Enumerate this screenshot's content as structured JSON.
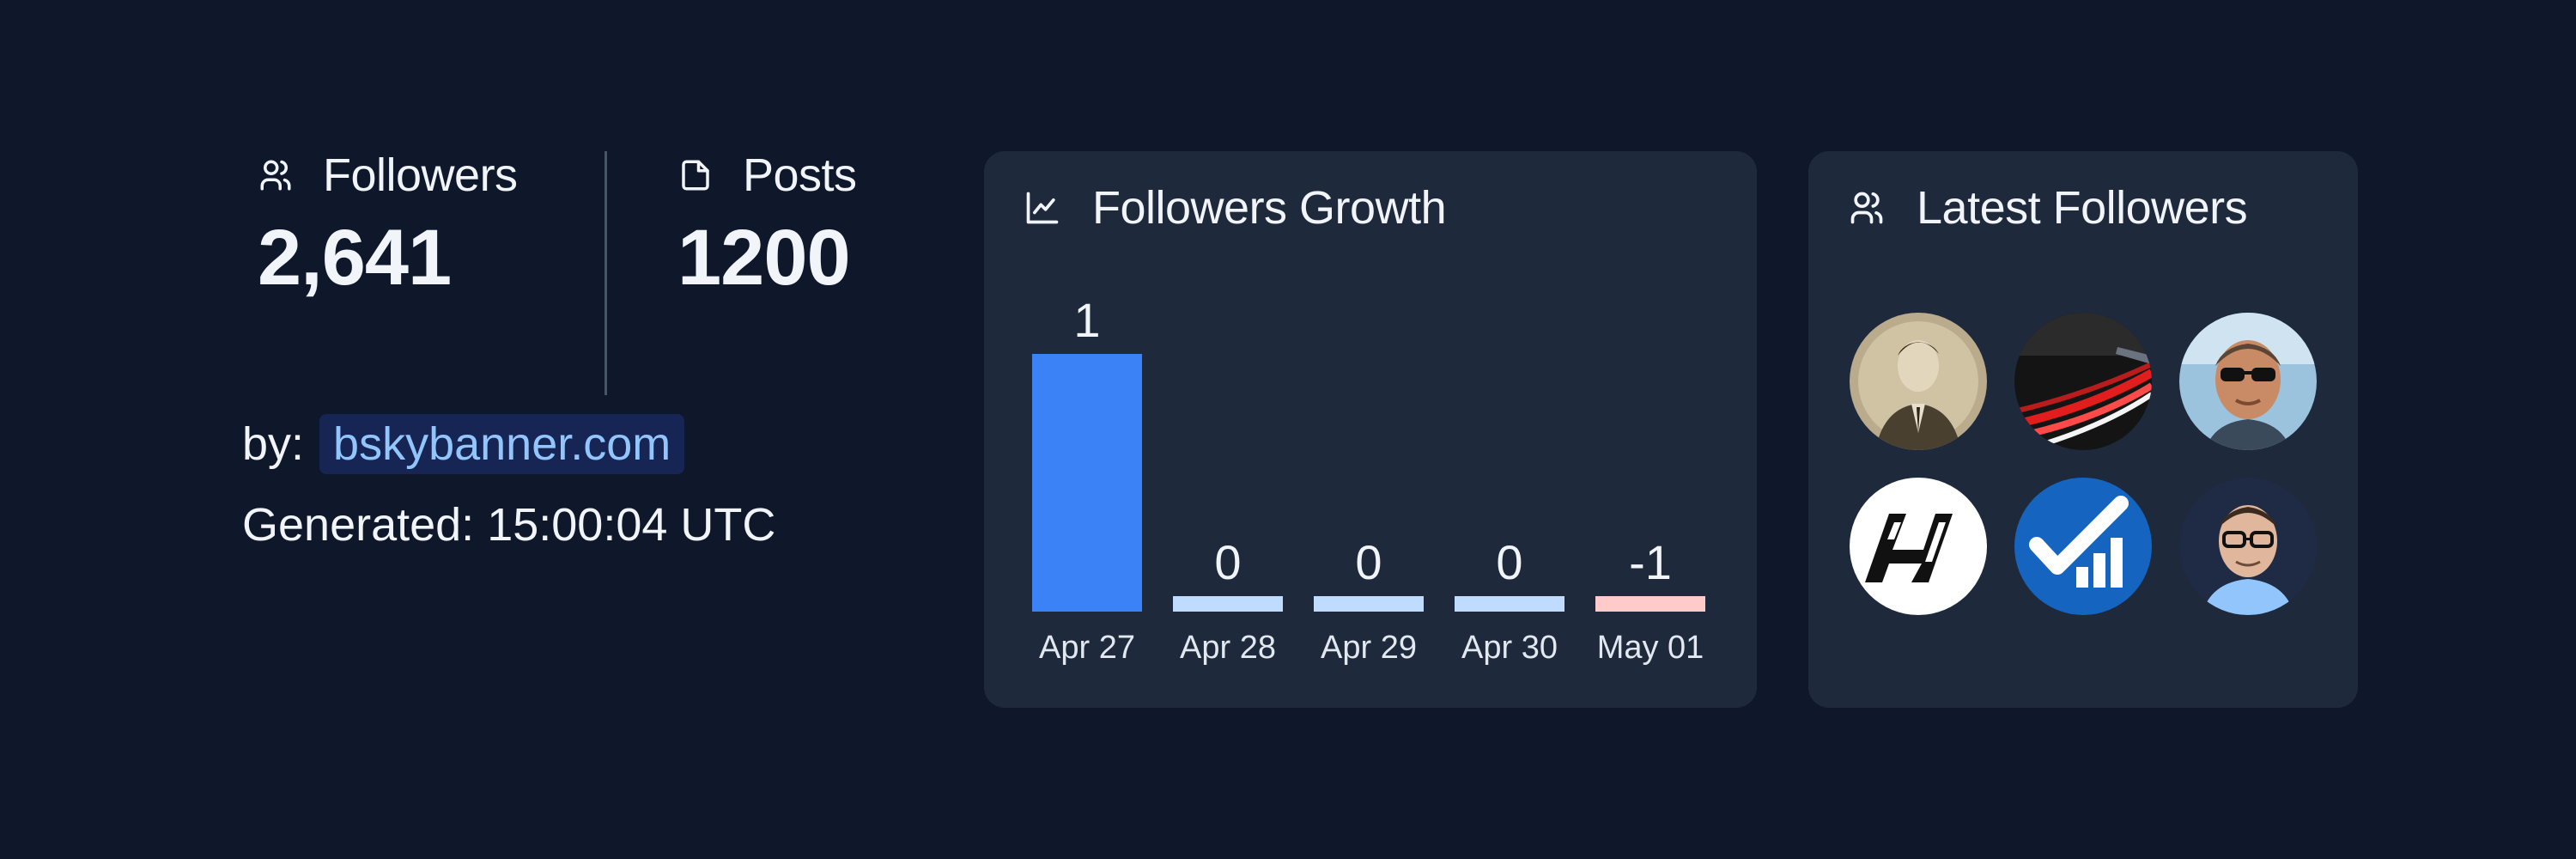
{
  "stats": {
    "followers": {
      "label": "Followers",
      "value": "2,641",
      "icon": "users-icon"
    },
    "posts": {
      "label": "Posts",
      "value": "1200",
      "icon": "file-icon"
    }
  },
  "byline": {
    "label": "by:",
    "link": "bskybanner.com"
  },
  "generated": "Generated: 15:00:04 UTC",
  "growth": {
    "title": "Followers Growth",
    "icon": "line-chart-icon"
  },
  "latest": {
    "title": "Latest Followers",
    "icon": "users-icon"
  },
  "colors": {
    "background": "#0f172a",
    "card": "#1e293b",
    "bar_positive": "#3b82f6",
    "bar_zero": "#bfdbfe",
    "bar_negative": "#fecaca",
    "link": "#93c5fd"
  },
  "chart_data": {
    "type": "bar",
    "title": "Followers Growth",
    "categories": [
      "Apr 27",
      "Apr 28",
      "Apr 29",
      "Apr 30",
      "May 01"
    ],
    "values": [
      1,
      0,
      0,
      0,
      -1
    ],
    "value_labels": [
      "1",
      "0",
      "0",
      "0",
      "-1"
    ],
    "xlabel": "",
    "ylabel": ""
  },
  "avatars": [
    {
      "name": "avatar-vintage-portrait"
    },
    {
      "name": "avatar-highway-lights"
    },
    {
      "name": "avatar-sunglasses-man"
    },
    {
      "name": "avatar-h-logo"
    },
    {
      "name": "avatar-check-signal-logo"
    },
    {
      "name": "avatar-glasses-man"
    }
  ]
}
